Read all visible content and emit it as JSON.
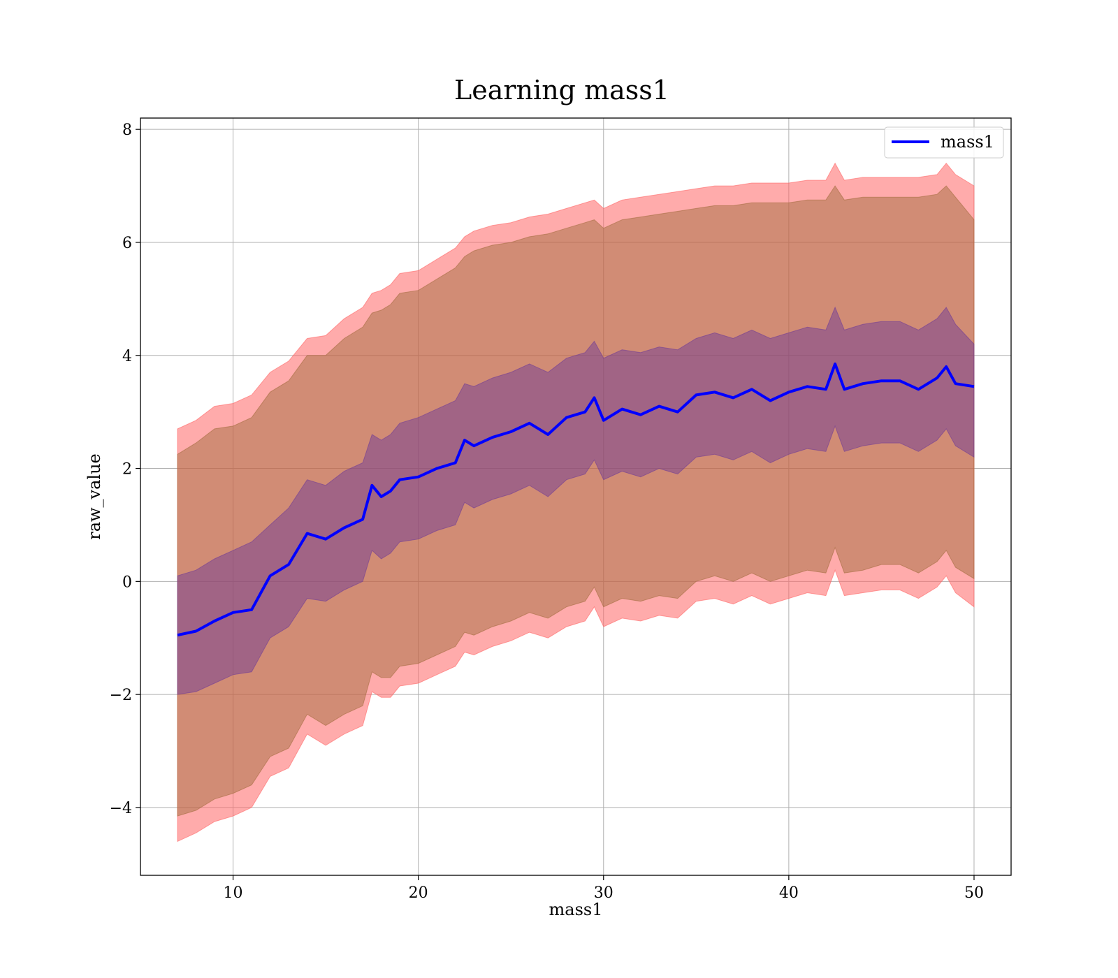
{
  "chart_data": {
    "type": "line",
    "title": "Learning mass1",
    "xlabel": "mass1",
    "ylabel": "raw_value",
    "xlim": [
      5,
      52
    ],
    "ylim": [
      -5.2,
      8.2
    ],
    "xticks": [
      10,
      20,
      30,
      40,
      50
    ],
    "yticks": [
      -4,
      -2,
      0,
      2,
      4,
      6,
      8
    ],
    "ytick_labels": [
      "−4",
      "−2",
      "0",
      "2",
      "4",
      "6",
      "8"
    ],
    "grid": true,
    "legend": {
      "placement": "top-right",
      "entries": [
        "mass1"
      ]
    },
    "colors": {
      "line": "#0000ff",
      "outer_band": "#ff6666",
      "inner_band": "#996633",
      "mid_band": "#663399"
    },
    "x": [
      7.0,
      8.0,
      9.0,
      10.0,
      11.0,
      12.0,
      13.0,
      14.0,
      15.0,
      16.0,
      17.0,
      17.5,
      18.0,
      18.5,
      19.0,
      20.0,
      21.0,
      22.0,
      22.5,
      23.0,
      24.0,
      25.0,
      26.0,
      27.0,
      28.0,
      29.0,
      29.5,
      30.0,
      31.0,
      32.0,
      33.0,
      34.0,
      35.0,
      36.0,
      37.0,
      38.0,
      39.0,
      40.0,
      41.0,
      42.0,
      42.5,
      43.0,
      44.0,
      45.0,
      46.0,
      47.0,
      48.0,
      48.5,
      49.0,
      50.0
    ],
    "series": [
      {
        "name": "mass1",
        "values": [
          -0.95,
          -0.88,
          -0.7,
          -0.55,
          -0.5,
          0.1,
          0.3,
          0.85,
          0.75,
          0.95,
          1.1,
          1.7,
          1.5,
          1.6,
          1.8,
          1.85,
          2.0,
          2.1,
          2.5,
          2.4,
          2.55,
          2.65,
          2.8,
          2.6,
          2.9,
          3.0,
          3.25,
          2.85,
          3.05,
          2.95,
          3.1,
          3.0,
          3.3,
          3.35,
          3.25,
          3.4,
          3.2,
          3.35,
          3.45,
          3.4,
          3.85,
          3.4,
          3.5,
          3.55,
          3.55,
          3.4,
          3.6,
          3.8,
          3.5,
          3.45
        ]
      },
      {
        "name": "outer_upper",
        "values": [
          2.7,
          2.85,
          3.1,
          3.15,
          3.3,
          3.7,
          3.9,
          4.3,
          4.35,
          4.65,
          4.85,
          5.1,
          5.15,
          5.25,
          5.45,
          5.5,
          5.7,
          5.9,
          6.1,
          6.2,
          6.3,
          6.35,
          6.45,
          6.5,
          6.6,
          6.7,
          6.75,
          6.6,
          6.75,
          6.8,
          6.85,
          6.9,
          6.95,
          7.0,
          7.0,
          7.05,
          7.05,
          7.05,
          7.1,
          7.1,
          7.4,
          7.1,
          7.15,
          7.15,
          7.15,
          7.15,
          7.2,
          7.4,
          7.2,
          7.0
        ]
      },
      {
        "name": "inner_upper",
        "values": [
          2.25,
          2.45,
          2.7,
          2.75,
          2.9,
          3.35,
          3.55,
          4.0,
          4.0,
          4.3,
          4.5,
          4.75,
          4.8,
          4.9,
          5.1,
          5.15,
          5.35,
          5.55,
          5.75,
          5.85,
          5.95,
          6.0,
          6.1,
          6.15,
          6.25,
          6.35,
          6.4,
          6.25,
          6.4,
          6.45,
          6.5,
          6.55,
          6.6,
          6.65,
          6.65,
          6.7,
          6.7,
          6.7,
          6.75,
          6.75,
          7.0,
          6.75,
          6.8,
          6.8,
          6.8,
          6.8,
          6.85,
          7.0,
          6.8,
          6.4
        ]
      },
      {
        "name": "mid_upper",
        "values": [
          0.1,
          0.2,
          0.4,
          0.55,
          0.7,
          1.0,
          1.3,
          1.8,
          1.7,
          1.95,
          2.1,
          2.6,
          2.5,
          2.6,
          2.8,
          2.9,
          3.05,
          3.2,
          3.5,
          3.45,
          3.6,
          3.7,
          3.85,
          3.7,
          3.95,
          4.05,
          4.25,
          3.95,
          4.1,
          4.05,
          4.15,
          4.1,
          4.3,
          4.4,
          4.3,
          4.45,
          4.3,
          4.4,
          4.5,
          4.45,
          4.85,
          4.45,
          4.55,
          4.6,
          4.6,
          4.45,
          4.65,
          4.85,
          4.55,
          4.2
        ]
      },
      {
        "name": "mid_lower",
        "values": [
          -2.0,
          -1.95,
          -1.8,
          -1.65,
          -1.6,
          -1.0,
          -0.8,
          -0.3,
          -0.35,
          -0.15,
          0.0,
          0.55,
          0.4,
          0.5,
          0.7,
          0.75,
          0.9,
          1.0,
          1.4,
          1.3,
          1.45,
          1.55,
          1.7,
          1.5,
          1.8,
          1.9,
          2.15,
          1.8,
          1.95,
          1.85,
          2.0,
          1.9,
          2.2,
          2.25,
          2.15,
          2.3,
          2.1,
          2.25,
          2.35,
          2.3,
          2.75,
          2.3,
          2.4,
          2.45,
          2.45,
          2.3,
          2.5,
          2.7,
          2.4,
          2.2
        ]
      },
      {
        "name": "inner_lower",
        "values": [
          -4.15,
          -4.05,
          -3.85,
          -3.75,
          -3.6,
          -3.1,
          -2.95,
          -2.35,
          -2.55,
          -2.35,
          -2.2,
          -1.6,
          -1.7,
          -1.7,
          -1.5,
          -1.45,
          -1.3,
          -1.15,
          -0.9,
          -0.95,
          -0.8,
          -0.7,
          -0.55,
          -0.65,
          -0.45,
          -0.35,
          -0.1,
          -0.45,
          -0.3,
          -0.35,
          -0.25,
          -0.3,
          0.0,
          0.1,
          0.0,
          0.15,
          0.0,
          0.1,
          0.2,
          0.15,
          0.6,
          0.15,
          0.2,
          0.3,
          0.3,
          0.15,
          0.35,
          0.55,
          0.25,
          0.05
        ]
      },
      {
        "name": "outer_lower",
        "values": [
          -4.6,
          -4.45,
          -4.25,
          -4.15,
          -4.0,
          -3.45,
          -3.3,
          -2.7,
          -2.9,
          -2.7,
          -2.55,
          -1.95,
          -2.05,
          -2.05,
          -1.85,
          -1.8,
          -1.65,
          -1.5,
          -1.25,
          -1.3,
          -1.15,
          -1.05,
          -0.9,
          -1.0,
          -0.8,
          -0.7,
          -0.45,
          -0.8,
          -0.65,
          -0.7,
          -0.6,
          -0.65,
          -0.35,
          -0.3,
          -0.4,
          -0.25,
          -0.4,
          -0.3,
          -0.2,
          -0.25,
          0.2,
          -0.25,
          -0.2,
          -0.15,
          -0.15,
          -0.3,
          -0.1,
          0.1,
          -0.2,
          -0.45
        ]
      }
    ]
  }
}
